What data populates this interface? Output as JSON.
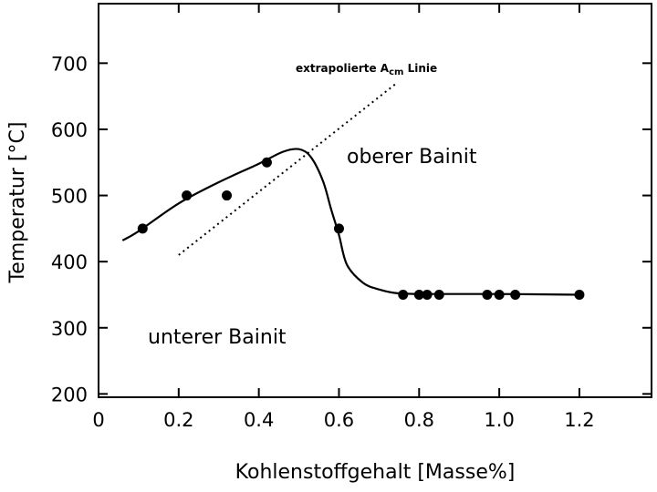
{
  "chart_data": {
    "type": "scatter",
    "xlabel": "Kohlenstoffgehalt [Masse%]",
    "ylabel": "Temperatur [°C]",
    "xlim": [
      0,
      1.38
    ],
    "ylim": [
      195,
      790
    ],
    "xticks": [
      "0",
      "0.2",
      "0.4",
      "0.6",
      "0.8",
      "1.0",
      "1.2"
    ],
    "yticks": [
      "200",
      "300",
      "400",
      "500",
      "600",
      "700"
    ],
    "grid": false,
    "points": {
      "x": [
        0.11,
        0.22,
        0.32,
        0.42,
        0.6,
        0.76,
        0.8,
        0.82,
        0.85,
        0.97,
        1.0,
        1.04,
        1.2
      ],
      "y": [
        450,
        500,
        500,
        550,
        450,
        350,
        350,
        350,
        350,
        350,
        350,
        350,
        350
      ]
    },
    "curve": {
      "x": [
        0.06,
        0.1,
        0.2,
        0.3,
        0.4,
        0.46,
        0.5,
        0.53,
        0.56,
        0.58,
        0.6,
        0.62,
        0.66,
        0.7,
        0.75,
        0.85,
        1.0,
        1.2
      ],
      "y": [
        432,
        446,
        488,
        520,
        548,
        566,
        570,
        558,
        522,
        480,
        440,
        395,
        368,
        358,
        352,
        351,
        351,
        350
      ]
    },
    "extrapolated_line": {
      "style": "dotted",
      "x": [
        0.2,
        0.74
      ],
      "y": [
        410,
        668
      ]
    },
    "annotations": {
      "extrapolated_label_main": "extrapolierte A",
      "extrapolated_label_sub": "cm",
      "extrapolated_label_end": " Linie",
      "upper_region": "oberer Bainit",
      "lower_region": "unterer Bainit"
    }
  }
}
